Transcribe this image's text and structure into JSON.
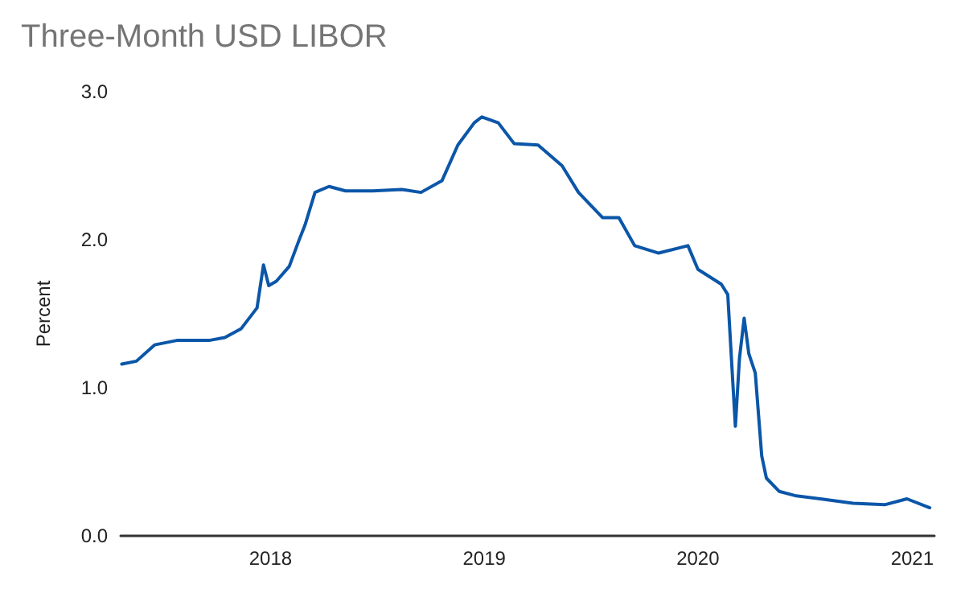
{
  "chart_data": {
    "type": "line",
    "title": "Three-Month USD LIBOR",
    "ylabel": "Percent",
    "x": [
      "2017-04-22",
      "2017-05-17",
      "2017-06-17",
      "2017-07-25",
      "2017-09-18",
      "2017-10-15",
      "2017-11-12",
      "2017-12-09",
      "2017-12-20",
      "2017-12-29",
      "2018-01-11",
      "2018-02-02",
      "2018-02-18",
      "2018-03-01",
      "2018-03-18",
      "2018-04-11",
      "2018-05-09",
      "2018-06-25",
      "2018-08-13",
      "2018-09-15",
      "2018-10-21",
      "2018-11-17",
      "2018-12-15",
      "2018-12-28",
      "2019-01-25",
      "2019-02-21",
      "2019-04-03",
      "2019-05-14",
      "2019-06-11",
      "2019-07-22",
      "2019-08-19",
      "2019-09-15",
      "2019-10-26",
      "2019-12-15",
      "2020-01-01",
      "2020-02-10",
      "2020-02-21",
      "2020-03-01",
      "2020-03-05",
      "2020-03-12",
      "2020-03-20",
      "2020-03-28",
      "2020-04-08",
      "2020-04-19",
      "2020-04-27",
      "2020-05-19",
      "2020-06-17",
      "2020-07-28",
      "2020-09-22",
      "2020-11-15",
      "2020-12-23",
      "2021-01-31"
    ],
    "series": [
      {
        "color": "#0b56a8",
        "values": [
          1.16,
          1.18,
          1.29,
          1.32,
          1.32,
          1.34,
          1.4,
          1.54,
          1.83,
          1.69,
          1.72,
          1.82,
          1.99,
          2.1,
          2.32,
          2.36,
          2.33,
          2.33,
          2.34,
          2.32,
          2.4,
          2.64,
          2.79,
          2.83,
          2.79,
          2.65,
          2.64,
          2.5,
          2.32,
          2.15,
          2.15,
          1.96,
          1.91,
          1.96,
          1.8,
          1.7,
          1.63,
          1.01,
          0.74,
          1.2,
          1.47,
          1.23,
          1.1,
          0.54,
          0.39,
          0.3,
          0.27,
          0.25,
          0.22,
          0.21,
          0.25,
          0.19
        ]
      }
    ],
    "xlim": [
      "2017-04-20",
      "2021-02-08"
    ],
    "xticks": [
      "2018",
      "2019",
      "2020",
      "2021"
    ],
    "ylim": [
      0,
      3
    ],
    "yticks": [
      {
        "value": 0,
        "label": "0.0"
      },
      {
        "value": 1,
        "label": "1.0"
      },
      {
        "value": 2,
        "label": "2.0"
      },
      {
        "value": 3,
        "label": "3.0"
      }
    ],
    "grid": false,
    "marker": "none",
    "line_style": "solid"
  }
}
